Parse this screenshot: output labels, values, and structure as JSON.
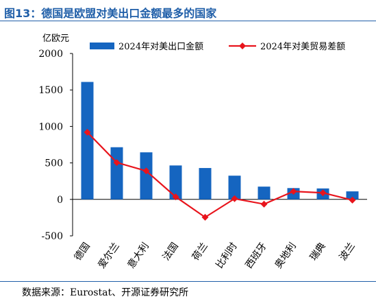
{
  "title": "图13：德国是欧盟对美出口金额最多的国家",
  "source": "数据来源：Eurostat、开源证券研究所",
  "chart_data": {
    "type": "bar",
    "unit_label": "亿欧元",
    "categories": [
      "德国",
      "爱尔兰",
      "意大利",
      "法国",
      "荷兰",
      "比利时",
      "西班牙",
      "奥地利",
      "瑞典",
      "波兰"
    ],
    "series": [
      {
        "name": "2024年对美出口金额",
        "type": "bar",
        "color": "#1565c0",
        "values": [
          1610,
          715,
          645,
          465,
          430,
          325,
          175,
          155,
          150,
          110
        ]
      },
      {
        "name": "2024年对美贸易差额",
        "type": "line",
        "color": "#e8141c",
        "values": [
          920,
          505,
          390,
          35,
          -245,
          10,
          -65,
          110,
          90,
          -10
        ]
      }
    ],
    "ylim": [
      -500,
      2000
    ],
    "yticks": [
      "-500",
      "0",
      "500",
      "1000",
      "1500",
      "2000"
    ],
    "legend_position": "top",
    "grid": false
  }
}
